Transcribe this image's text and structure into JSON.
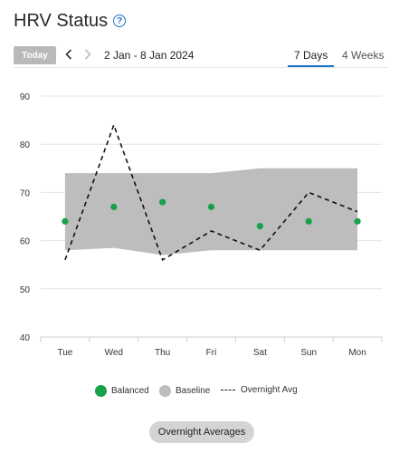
{
  "header": {
    "title": "HRV Status",
    "help_glyph": "?"
  },
  "toolbar": {
    "today_label": "Today",
    "prev_icon": "chevron-left-icon",
    "next_icon": "chevron-right-icon",
    "date_range": "2 Jan - 8 Jan 2024",
    "tabs": [
      {
        "label": "7 Days",
        "selected": true
      },
      {
        "label": "4 Weeks",
        "selected": false
      }
    ]
  },
  "colors": {
    "balanced": "#16a14a",
    "baseline": "#bdbdbd",
    "overnight": "#111111",
    "accent": "#1a73c9"
  },
  "chart_data": {
    "type": "line",
    "categories": [
      "Tue",
      "Wed",
      "Thu",
      "Fri",
      "Sat",
      "Sun",
      "Mon"
    ],
    "ylim": [
      40,
      90
    ],
    "yticks": [
      40,
      50,
      60,
      70,
      80,
      90
    ],
    "grid": true,
    "series": [
      {
        "name": "Balanced",
        "kind": "points",
        "values": [
          64,
          67,
          68,
          67,
          63,
          64,
          64
        ]
      },
      {
        "name": "Overnight Avg",
        "kind": "dashed-line",
        "values": [
          56,
          84,
          56,
          62,
          58,
          70,
          66
        ]
      }
    ],
    "baseline_band": {
      "name": "Baseline",
      "low": [
        58,
        58.5,
        57,
        58,
        58,
        58,
        58
      ],
      "high": [
        74,
        74,
        74,
        74,
        75,
        75,
        75
      ]
    },
    "legend_position": "bottom"
  },
  "legend": [
    {
      "label": "Balanced",
      "type": "dot",
      "color": "#16a14a"
    },
    {
      "label": "Baseline",
      "type": "dot",
      "color": "#bdbdbd"
    },
    {
      "label": "Overnight Avg",
      "type": "dash",
      "color": "#111111"
    }
  ],
  "footer": {
    "button_label": "Overnight Averages"
  }
}
